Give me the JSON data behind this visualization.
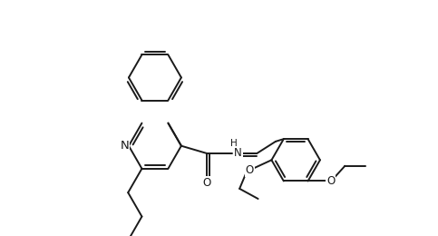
{
  "background": "#ffffff",
  "line_color": "#1a1a1a",
  "lw": 1.4,
  "fs": 8.5,
  "figsize": [
    4.83,
    2.6
  ],
  "dpi": 100,
  "xlim": [
    0,
    10
  ],
  "ylim": [
    0,
    7
  ]
}
